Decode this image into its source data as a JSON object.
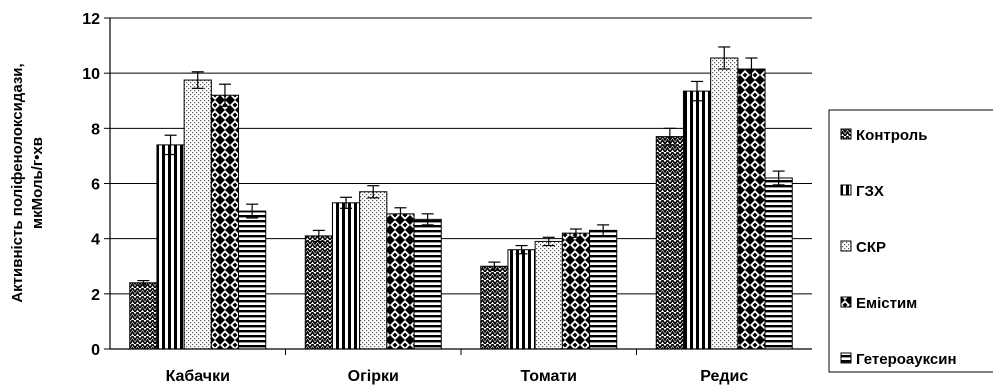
{
  "chart_data": {
    "type": "bar",
    "categories": [
      "Кабачки",
      "Огірки",
      "Томати",
      "Редис"
    ],
    "series": [
      {
        "name": "Контроль",
        "values": [
          2.4,
          4.1,
          3.0,
          7.7
        ],
        "errors": [
          0.08,
          0.2,
          0.15,
          0.3
        ],
        "pattern": "zigzag"
      },
      {
        "name": "ГЗХ",
        "values": [
          7.4,
          5.3,
          3.6,
          9.35
        ],
        "errors": [
          0.35,
          0.2,
          0.15,
          0.35
        ],
        "pattern": "vertical"
      },
      {
        "name": "СКР",
        "values": [
          9.75,
          5.7,
          3.9,
          10.55
        ],
        "errors": [
          0.3,
          0.22,
          0.15,
          0.4
        ],
        "pattern": "dots"
      },
      {
        "name": "Емістим",
        "values": [
          9.2,
          4.9,
          4.2,
          10.15
        ],
        "errors": [
          0.4,
          0.22,
          0.15,
          0.4
        ],
        "pattern": "checker"
      },
      {
        "name": "Гетероауксин",
        "values": [
          5.0,
          4.7,
          4.3,
          6.2
        ],
        "errors": [
          0.25,
          0.2,
          0.2,
          0.25
        ],
        "pattern": "horizontal"
      }
    ],
    "ylabel_line1": "Активність поліфенолоксидази,",
    "ylabel_line2": "мкМоль/г•хв",
    "ylim": [
      0,
      12
    ],
    "yticks": [
      "0",
      "2",
      "4",
      "6",
      "8",
      "10",
      "12"
    ],
    "grid": true,
    "legend_position": "right"
  }
}
